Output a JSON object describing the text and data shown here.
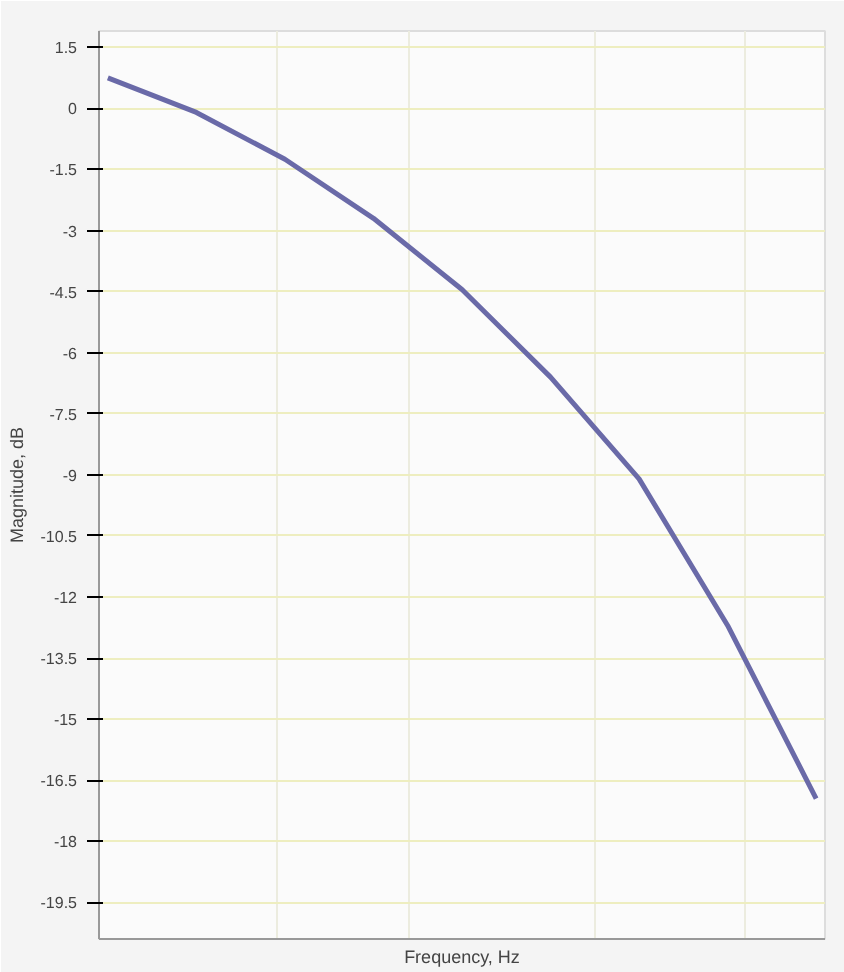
{
  "chart_data": {
    "type": "line",
    "xlabel": "Frequency, Hz",
    "ylabel": "Magnitude, dB",
    "categories": [
      null,
      null,
      null,
      null,
      null,
      null,
      null,
      null,
      null
    ],
    "series": [
      {
        "color": "#6a6aa8",
        "values": [
          0.75,
          -0.1,
          -1.25,
          -2.7,
          -4.45,
          -6.6,
          -9.1,
          -12.7,
          -16.95
        ]
      }
    ],
    "ylim": [
      -20.4,
      1.9
    ],
    "yticks": [
      1.5,
      0,
      -1.5,
      -3,
      -4.5,
      -6,
      -7.5,
      -9,
      -10.5,
      -12,
      -13.5,
      -15,
      -16.5,
      -18,
      -19.5
    ],
    "grid": true,
    "tick_labels": "y",
    "marker": "none",
    "line_style": "solid"
  }
}
